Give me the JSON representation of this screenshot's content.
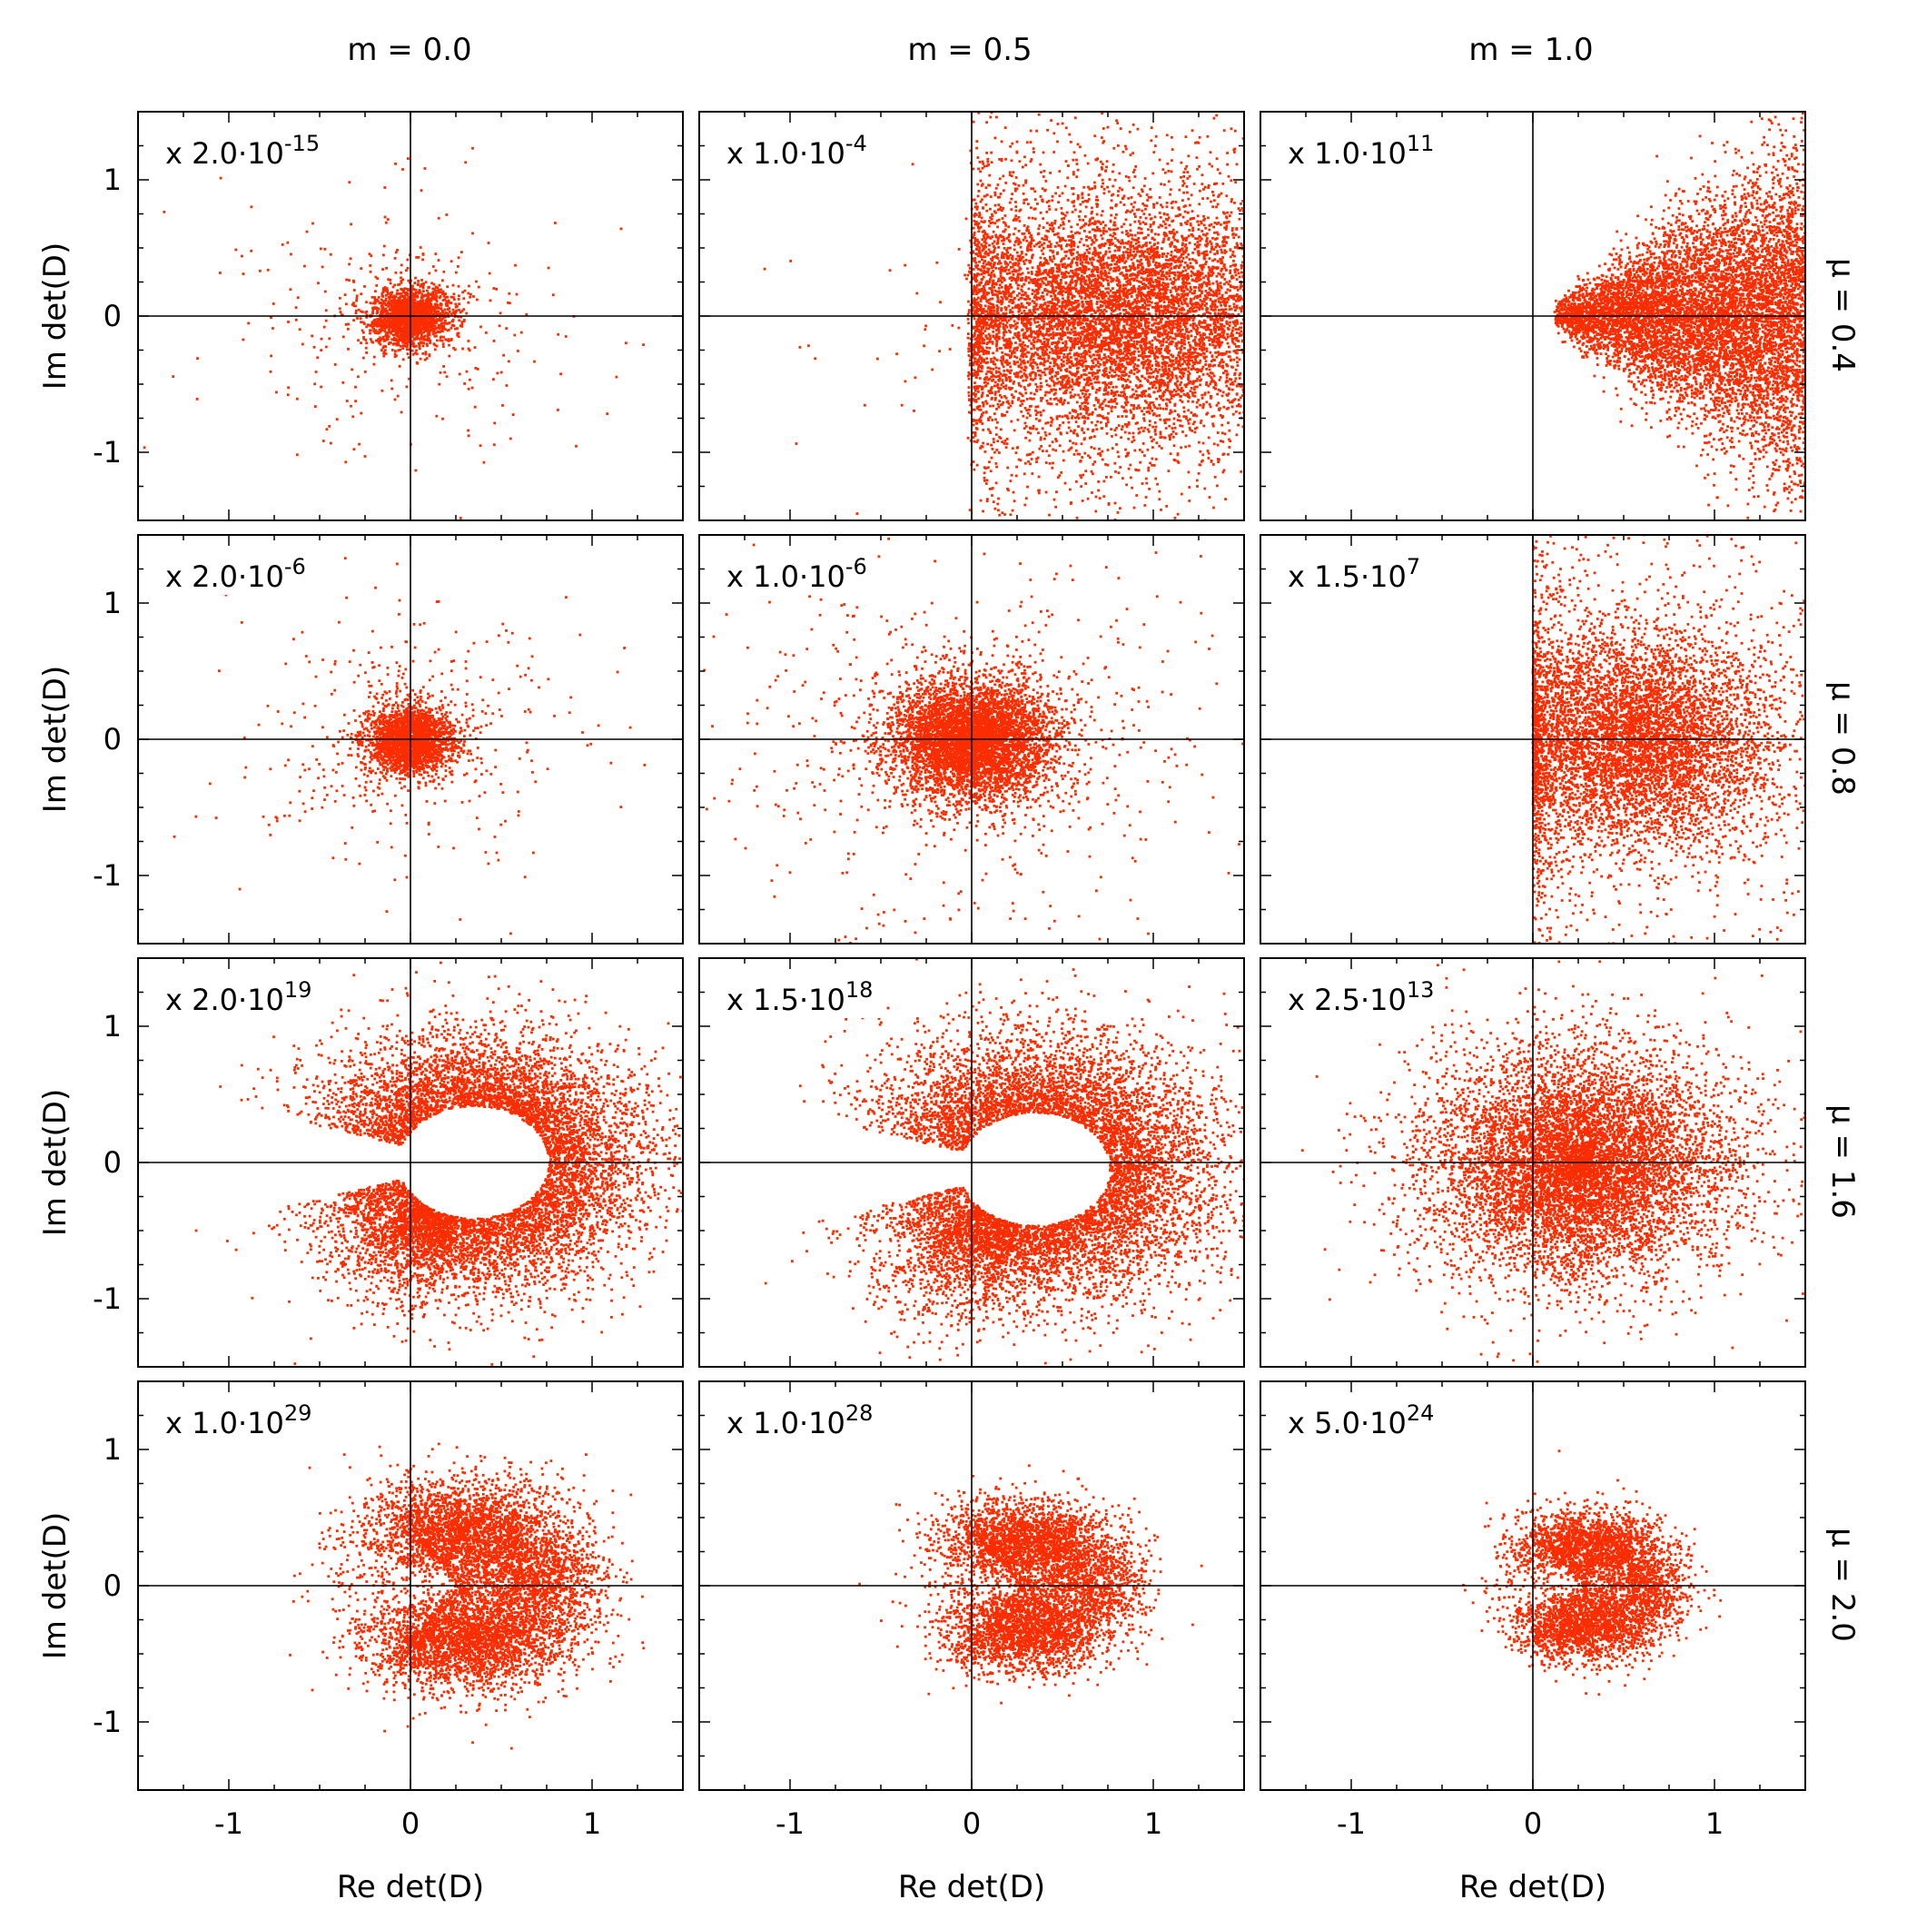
{
  "figure": {
    "point_color": "#fb2d00",
    "axis_color": "#000000",
    "columns": [
      {
        "label": "m = 0.0",
        "m": 0.0
      },
      {
        "label": "m = 0.5",
        "m": 0.5
      },
      {
        "label": "m = 1.0",
        "m": 1.0
      }
    ],
    "rows": [
      {
        "label": "μ = 0.4",
        "mu": 0.4
      },
      {
        "label": "μ = 0.8",
        "mu": 0.8
      },
      {
        "label": "μ = 1.6",
        "mu": 1.6
      },
      {
        "label": "μ = 2.0",
        "mu": 2.0
      }
    ]
  },
  "chart_data": [
    {
      "type": "scatter",
      "m": 0.0,
      "mu": 0.4,
      "scale_mantissa": "2.0",
      "scale_exponent": "-15",
      "xlabel": "",
      "ylabel": "Im det(D)",
      "xlim": [
        -1.5,
        1.5
      ],
      "ylim": [
        -1.5,
        1.5
      ],
      "xticks": [],
      "yticks": [
        "-1",
        "0",
        "1"
      ],
      "distribution": {
        "shape": "blob",
        "center": [
          0.0,
          0.0
        ],
        "radius": 0.15,
        "spread": 0.55,
        "density": 1.0,
        "n": 2200
      }
    },
    {
      "type": "scatter",
      "m": 0.5,
      "mu": 0.4,
      "scale_mantissa": "1.0",
      "scale_exponent": "-4",
      "xlabel": "",
      "ylabel": "",
      "xlim": [
        -1.5,
        1.5
      ],
      "ylim": [
        -1.5,
        1.5
      ],
      "xticks": [],
      "yticks": [],
      "distribution": {
        "shape": "halfplane",
        "center": [
          0.8,
          0.0
        ],
        "radius": 0.7,
        "spread": 0.9,
        "density": 1.0,
        "n": 9000
      }
    },
    {
      "type": "scatter",
      "m": 1.0,
      "mu": 0.4,
      "scale_mantissa": "1.0",
      "scale_exponent": "11",
      "xlabel": "",
      "ylabel": "",
      "xlim": [
        -1.5,
        1.5
      ],
      "ylim": [
        -1.5,
        1.5
      ],
      "xticks": [],
      "yticks": [],
      "distribution": {
        "shape": "cone",
        "center": [
          0.12,
          0.0
        ],
        "radius": 1.4,
        "spread": 0.7,
        "density": 1.0,
        "n": 8000
      }
    },
    {
      "type": "scatter",
      "m": 0.0,
      "mu": 0.8,
      "scale_mantissa": "2.0",
      "scale_exponent": "-6",
      "xlabel": "",
      "ylabel": "Im det(D)",
      "xlim": [
        -1.5,
        1.5
      ],
      "ylim": [
        -1.5,
        1.5
      ],
      "xticks": [],
      "yticks": [
        "-1",
        "0",
        "1"
      ],
      "distribution": {
        "shape": "blob",
        "center": [
          0.0,
          0.0
        ],
        "radius": 0.18,
        "spread": 0.6,
        "density": 1.0,
        "n": 2600
      }
    },
    {
      "type": "scatter",
      "m": 0.5,
      "mu": 0.8,
      "scale_mantissa": "1.0",
      "scale_exponent": "-6",
      "xlabel": "",
      "ylabel": "",
      "xlim": [
        -1.5,
        1.5
      ],
      "ylim": [
        -1.5,
        1.5
      ],
      "xticks": [],
      "yticks": [],
      "distribution": {
        "shape": "blob",
        "center": [
          0.0,
          0.0
        ],
        "radius": 0.32,
        "spread": 0.8,
        "density": 1.0,
        "n": 5500
      }
    },
    {
      "type": "scatter",
      "m": 1.0,
      "mu": 0.8,
      "scale_mantissa": "1.5",
      "scale_exponent": "7",
      "xlabel": "",
      "ylabel": "",
      "xlim": [
        -1.5,
        1.5
      ],
      "ylim": [
        -1.5,
        1.5
      ],
      "xticks": [],
      "yticks": [],
      "distribution": {
        "shape": "halfblob",
        "center": [
          0.55,
          0.0
        ],
        "radius": 0.65,
        "spread": 0.5,
        "density": 1.0,
        "n": 7000
      }
    },
    {
      "type": "scatter",
      "m": 0.0,
      "mu": 1.6,
      "scale_mantissa": "2.0",
      "scale_exponent": "19",
      "xlabel": "",
      "ylabel": "Im det(D)",
      "xlim": [
        -1.5,
        1.5
      ],
      "ylim": [
        -1.5,
        1.5
      ],
      "xticks": [],
      "yticks": [
        "-1",
        "0",
        "1"
      ],
      "distribution": {
        "shape": "ring",
        "center": [
          0.35,
          0.0
        ],
        "radius": 0.55,
        "spread": 0.45,
        "density": 1.0,
        "n": 8000
      }
    },
    {
      "type": "scatter",
      "m": 0.5,
      "mu": 1.6,
      "scale_mantissa": "1.5",
      "scale_exponent": "18",
      "xlabel": "",
      "ylabel": "",
      "xlim": [
        -1.5,
        1.5
      ],
      "ylim": [
        -1.5,
        1.5
      ],
      "xticks": [],
      "yticks": [],
      "distribution": {
        "shape": "ring",
        "center": [
          0.35,
          -0.05
        ],
        "radius": 0.55,
        "spread": 0.5,
        "density": 1.0,
        "n": 8000
      }
    },
    {
      "type": "scatter",
      "m": 1.0,
      "mu": 1.6,
      "scale_mantissa": "2.5",
      "scale_exponent": "13",
      "xlabel": "",
      "ylabel": "",
      "xlim": [
        -1.5,
        1.5
      ],
      "ylim": [
        -1.5,
        1.5
      ],
      "xticks": [],
      "yticks": [],
      "distribution": {
        "shape": "blob",
        "center": [
          0.25,
          0.0
        ],
        "radius": 0.6,
        "spread": 0.6,
        "density": 1.0,
        "n": 8000
      }
    },
    {
      "type": "scatter",
      "m": 0.0,
      "mu": 2.0,
      "scale_mantissa": "1.0",
      "scale_exponent": "29",
      "xlabel": "Re det(D)",
      "ylabel": "Im det(D)",
      "xlim": [
        -1.5,
        1.5
      ],
      "ylim": [
        -1.5,
        1.5
      ],
      "xticks": [
        "-1",
        "0",
        "1"
      ],
      "yticks": [
        "-1",
        "0",
        "1"
      ],
      "distribution": {
        "shape": "crescent",
        "center": [
          0.28,
          0.0
        ],
        "radius": 0.55,
        "spread": 0.18,
        "density": 1.0,
        "n": 7000
      }
    },
    {
      "type": "scatter",
      "m": 0.5,
      "mu": 2.0,
      "scale_mantissa": "1.0",
      "scale_exponent": "28",
      "xlabel": "Re det(D)",
      "ylabel": "",
      "xlim": [
        -1.5,
        1.5
      ],
      "ylim": [
        -1.5,
        1.5
      ],
      "xticks": [
        "-1",
        "0",
        "1"
      ],
      "yticks": [],
      "distribution": {
        "shape": "crescent",
        "center": [
          0.28,
          0.0
        ],
        "radius": 0.45,
        "spread": 0.15,
        "density": 1.0,
        "n": 5500
      }
    },
    {
      "type": "scatter",
      "m": 1.0,
      "mu": 2.0,
      "scale_mantissa": "5.0",
      "scale_exponent": "24",
      "xlabel": "Re det(D)",
      "ylabel": "",
      "xlim": [
        -1.5,
        1.5
      ],
      "ylim": [
        -1.5,
        1.5
      ],
      "xticks": [
        "-1",
        "0",
        "1"
      ],
      "yticks": [],
      "distribution": {
        "shape": "crescent",
        "center": [
          0.28,
          0.0
        ],
        "radius": 0.4,
        "spread": 0.13,
        "density": 1.0,
        "n": 4500
      }
    }
  ]
}
